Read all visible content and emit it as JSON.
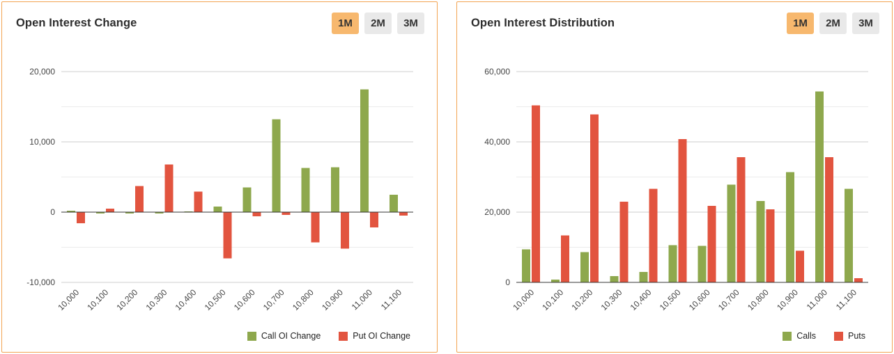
{
  "panels": [
    {
      "title": "Open Interest Change",
      "timeframes": [
        {
          "label": "1M",
          "active": true
        },
        {
          "label": "2M",
          "active": false
        },
        {
          "label": "3M",
          "active": false
        }
      ],
      "legend": [
        {
          "label": "Call OI Change",
          "color": "#8ea84d"
        },
        {
          "label": "Put OI Change",
          "color": "#e2543f"
        }
      ]
    },
    {
      "title": "Open Interest Distribution",
      "timeframes": [
        {
          "label": "1M",
          "active": true
        },
        {
          "label": "2M",
          "active": false
        },
        {
          "label": "3M",
          "active": false
        }
      ],
      "legend": [
        {
          "label": "Calls",
          "color": "#8ea84d"
        },
        {
          "label": "Puts",
          "color": "#e2543f"
        }
      ]
    }
  ],
  "colors": {
    "call_green": "#8ea84d",
    "put_red": "#e2543f",
    "active_button_bg": "#f7b86e",
    "inactive_button_bg": "#e9e9e9",
    "panel_border": "#f2a452",
    "gridline": "#cccccc",
    "minor_gridline": "#ebebeb",
    "axis_line": "#333333",
    "axis_text": "#444444"
  },
  "chart_data": [
    {
      "type": "bar",
      "title": "Open Interest Change",
      "categories": [
        "10,000",
        "10,100",
        "10,200",
        "10,300",
        "10,400",
        "10,500",
        "10,600",
        "10,700",
        "10,800",
        "10,900",
        "11,000",
        "11,100"
      ],
      "series": [
        {
          "name": "Call OI Change",
          "values": [
            200,
            -200,
            -200,
            -200,
            100,
            800,
            3500,
            13200,
            6300,
            6400,
            17500,
            2500
          ]
        },
        {
          "name": "Put OI Change",
          "values": [
            -1600,
            500,
            3700,
            6800,
            2900,
            -6600,
            -600,
            -400,
            -4300,
            -5200,
            -2200,
            -500
          ]
        }
      ],
      "ylim": [
        -10000,
        20000
      ],
      "yticks": [
        -10000,
        0,
        10000,
        20000
      ],
      "ytick_labels": [
        "-10,000",
        "0",
        "10,000",
        "20,000"
      ],
      "xlabel": "",
      "ylabel": "",
      "grid": true,
      "legend_position": "bottom-right"
    },
    {
      "type": "bar",
      "title": "Open Interest Distribution",
      "categories": [
        "10,000",
        "10,100",
        "10,200",
        "10,300",
        "10,400",
        "10,500",
        "10,600",
        "10,700",
        "10,800",
        "10,900",
        "11,000",
        "11,100"
      ],
      "series": [
        {
          "name": "Calls",
          "values": [
            9400,
            800,
            8600,
            1800,
            3000,
            10600,
            10400,
            27800,
            23200,
            31400,
            54400,
            26600
          ]
        },
        {
          "name": "Puts",
          "values": [
            50400,
            13400,
            47800,
            23000,
            26600,
            40800,
            21800,
            35600,
            20800,
            9000,
            35600,
            1200
          ]
        }
      ],
      "ylim": [
        0,
        60000
      ],
      "yticks": [
        0,
        20000,
        40000,
        60000
      ],
      "ytick_labels": [
        "0",
        "20,000",
        "40,000",
        "60,000"
      ],
      "xlabel": "",
      "ylabel": "",
      "grid": true,
      "legend_position": "bottom-right"
    }
  ]
}
